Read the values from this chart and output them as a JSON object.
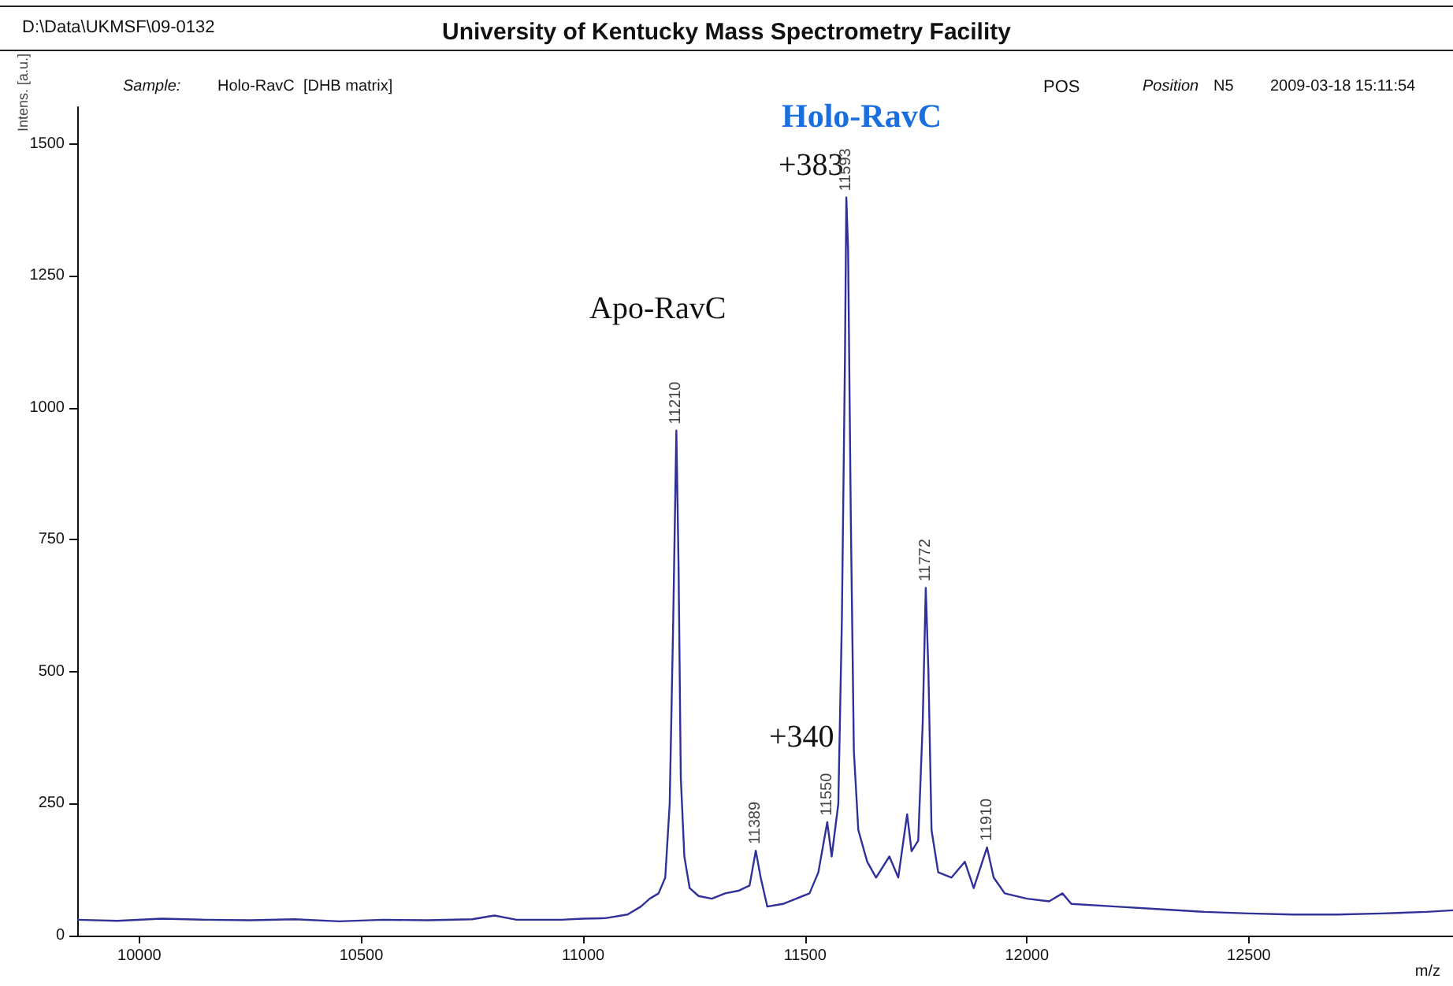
{
  "chart_data": {
    "type": "line",
    "title": "University of Kentucky Mass Spectrometry Facility",
    "xlabel": "m/z",
    "ylabel": "Intens. [a.u.]",
    "annotations": [
      "D:\\Data\\UKMSF\\09-0132",
      "Sample:",
      "Holo-RavC  [DHB matrix]",
      "POS",
      "Position",
      "N5",
      "2009-03-18 15:11:54",
      "Holo-RavC",
      "+383",
      "Apo-RavC",
      "+340",
      {
        "text": "11210",
        "x": 11210,
        "y": 957
      },
      {
        "text": "11389",
        "x": 11389,
        "y": 161
      },
      {
        "text": "11550",
        "x": 11550,
        "y": 215
      },
      {
        "text": "11593",
        "x": 11593,
        "y": 1399
      },
      {
        "text": "11772",
        "x": 11772,
        "y": 659
      },
      {
        "text": "11910",
        "x": 11910,
        "y": 167
      }
    ],
    "x": [
      9860,
      9950,
      10050,
      10150,
      10250,
      10350,
      10450,
      10550,
      10650,
      10750,
      10800,
      10850,
      10950,
      11000,
      11050,
      11100,
      11130,
      11150,
      11170,
      11185,
      11195,
      11203,
      11210,
      11215,
      11220,
      11228,
      11240,
      11260,
      11290,
      11320,
      11350,
      11375,
      11389,
      11400,
      11415,
      11450,
      11480,
      11510,
      11530,
      11550,
      11560,
      11575,
      11583,
      11590,
      11593,
      11597,
      11603,
      11610,
      11620,
      11640,
      11660,
      11690,
      11710,
      11730,
      11740,
      11755,
      11765,
      11772,
      11778,
      11785,
      11800,
      11830,
      11860,
      11880,
      11910,
      11925,
      11950,
      12000,
      12050,
      12080,
      12100,
      12200,
      12300,
      12400,
      12500,
      12600,
      12700,
      12800,
      12900,
      12960
    ],
    "series": [
      {
        "color": "#30309a",
        "values": [
          30,
          28,
          32,
          30,
          29,
          31,
          27,
          30,
          29,
          31,
          38,
          30,
          30,
          32,
          33,
          40,
          55,
          70,
          80,
          110,
          250,
          600,
          957,
          700,
          300,
          150,
          90,
          75,
          70,
          80,
          85,
          95,
          161,
          110,
          55,
          60,
          70,
          80,
          120,
          215,
          150,
          250,
          600,
          1100,
          1399,
          1300,
          800,
          350,
          200,
          140,
          110,
          150,
          110,
          230,
          160,
          180,
          400,
          659,
          500,
          200,
          120,
          110,
          140,
          90,
          167,
          110,
          80,
          70,
          65,
          80,
          60,
          55,
          50,
          45,
          42,
          40,
          40,
          42,
          45,
          48
        ]
      }
    ],
    "xlim": [
      9860,
      12960
    ],
    "ylim": [
      0,
      1570
    ],
    "xticks": [
      10000,
      10500,
      11000,
      11500,
      12000,
      12500
    ],
    "yticks": [
      0,
      250,
      500,
      750,
      1000,
      1250,
      1500
    ],
    "grid": false,
    "marker": "none",
    "line_style": "solid"
  }
}
